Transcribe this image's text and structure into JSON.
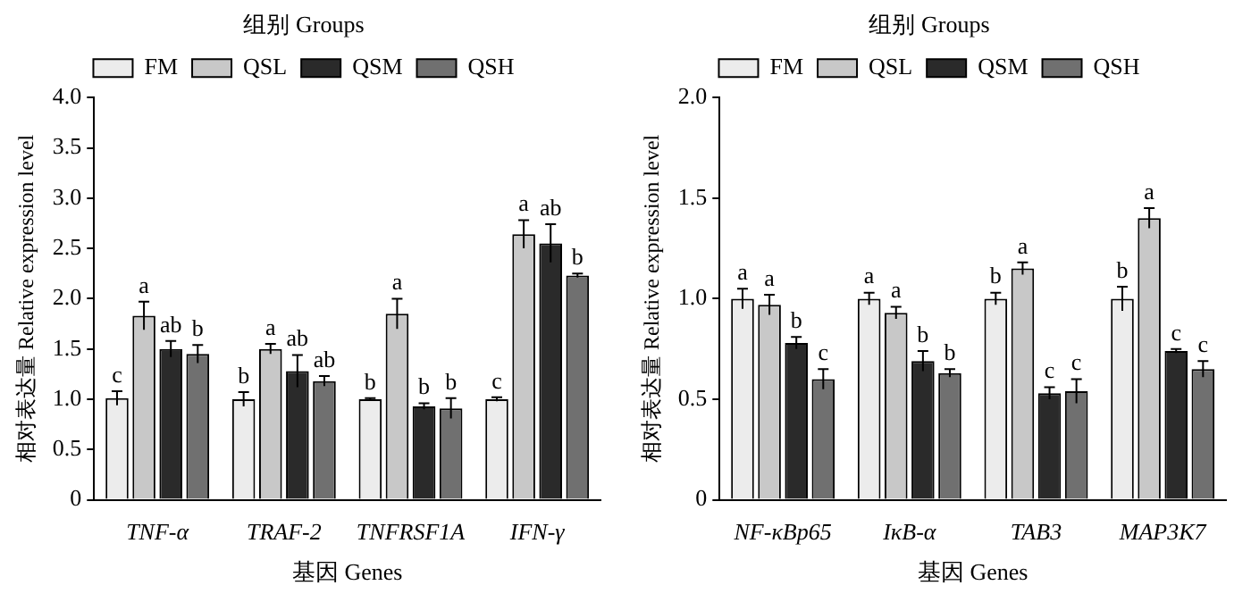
{
  "chart_data": [
    {
      "type": "bar",
      "legend_title": "组别 Groups",
      "xlabel": "基因 Genes",
      "ylabel": "相对表达量 Relative expression level",
      "categories": [
        "TNF-α",
        "TRAF-2",
        "TNFRSF1A",
        "IFN-γ"
      ],
      "ylim": [
        0,
        4
      ],
      "yticks": [
        0,
        0.5,
        {
          "value": 1,
          "label": "1.0"
        },
        1.5,
        {
          "value": 2,
          "label": "2.0"
        },
        2.5,
        {
          "value": 3,
          "label": "3.0"
        },
        3.5,
        {
          "value": 4,
          "label": "4.0"
        }
      ],
      "grid": false,
      "legend": "top",
      "series": [
        {
          "name": "FM",
          "color": "#ececec",
          "values": [
            1.01,
            1.0,
            1.0,
            1.0
          ],
          "errors": [
            0.07,
            0.07,
            0.01,
            0.02
          ],
          "value_labels": [
            "c",
            "b",
            "b",
            "c"
          ]
        },
        {
          "name": "QSL",
          "color": "#c8c8c8",
          "values": [
            1.83,
            1.5,
            1.85,
            2.64
          ],
          "errors": [
            0.14,
            0.05,
            0.15,
            0.14
          ],
          "value_labels": [
            "a",
            "a",
            "a",
            "a"
          ]
        },
        {
          "name": "QSM",
          "color": "#2a2a2a",
          "values": [
            1.5,
            1.28,
            0.93,
            2.55
          ],
          "errors": [
            0.08,
            0.16,
            0.03,
            0.19
          ],
          "value_labels": [
            "ab",
            "ab",
            "b",
            "ab"
          ]
        },
        {
          "name": "QSH",
          "color": "#707070",
          "values": [
            1.45,
            1.18,
            0.91,
            2.23
          ],
          "errors": [
            0.09,
            0.05,
            0.1,
            0.02
          ],
          "value_labels": [
            "b",
            "ab",
            "b",
            "b"
          ]
        }
      ]
    },
    {
      "type": "bar",
      "legend_title": "组别 Groups",
      "xlabel": "基因 Genes",
      "ylabel": "相对表达量 Relative expression level",
      "categories": [
        "NF-κBp65",
        "IκB-α",
        "TAB3",
        "MAP3K7"
      ],
      "ylim": [
        0,
        2
      ],
      "yticks": [
        0,
        0.5,
        {
          "value": 1,
          "label": "1.0"
        },
        1.5,
        {
          "value": 2,
          "label": "2.0"
        }
      ],
      "grid": false,
      "legend": "top",
      "series": [
        {
          "name": "FM",
          "color": "#ececec",
          "values": [
            1.0,
            1.0,
            1.0,
            1.0
          ],
          "errors": [
            0.05,
            0.03,
            0.03,
            0.06
          ],
          "value_labels": [
            "a",
            "a",
            "b",
            "b"
          ]
        },
        {
          "name": "QSL",
          "color": "#c8c8c8",
          "values": [
            0.97,
            0.93,
            1.15,
            1.4
          ],
          "errors": [
            0.05,
            0.03,
            0.03,
            0.05
          ],
          "value_labels": [
            "a",
            "a",
            "a",
            "a"
          ]
        },
        {
          "name": "QSM",
          "color": "#2a2a2a",
          "values": [
            0.78,
            0.69,
            0.53,
            0.74
          ],
          "errors": [
            0.03,
            0.05,
            0.03,
            0.01
          ],
          "value_labels": [
            "b",
            "b",
            "c",
            "c"
          ]
        },
        {
          "name": "QSH",
          "color": "#707070",
          "values": [
            0.6,
            0.63,
            0.54,
            0.65
          ],
          "errors": [
            0.05,
            0.02,
            0.06,
            0.04
          ],
          "value_labels": [
            "c",
            "b",
            "c",
            "c"
          ]
        }
      ]
    }
  ]
}
